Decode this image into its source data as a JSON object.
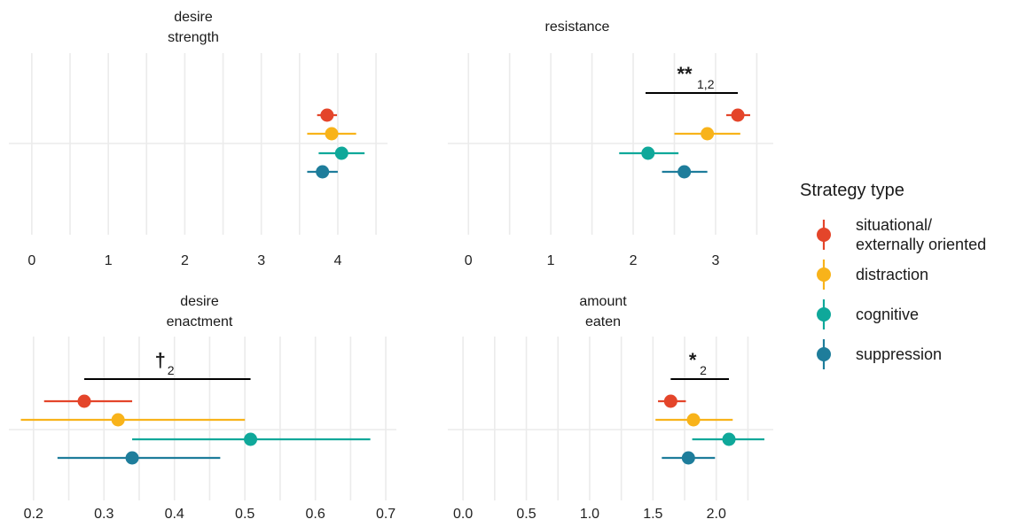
{
  "legend": {
    "title": "Strategy type",
    "items": [
      {
        "label_lines": [
          "situational/",
          "externally oriented"
        ],
        "color": "#E4452A"
      },
      {
        "label_lines": [
          "distraction"
        ],
        "color": "#F8B31A"
      },
      {
        "label_lines": [
          "cognitive"
        ],
        "color": "#0FA89A"
      },
      {
        "label_lines": [
          "suppression"
        ],
        "color": "#1E7D9B"
      }
    ]
  },
  "chart_data": [
    {
      "type": "scatter",
      "title_lines": [
        "desire",
        "strength"
      ],
      "xlim": [
        -0.3,
        4.65
      ],
      "xticks": [
        0,
        1,
        2,
        3,
        4
      ],
      "tick_labels": [
        "0",
        "1",
        "2",
        "3",
        "4"
      ],
      "points": [
        {
          "series": "situational/externally oriented",
          "value": 3.86,
          "lo": 3.73,
          "hi": 3.99
        },
        {
          "series": "distraction",
          "value": 3.92,
          "lo": 3.6,
          "hi": 4.24
        },
        {
          "series": "cognitive",
          "value": 4.05,
          "lo": 3.75,
          "hi": 4.35
        },
        {
          "series": "suppression",
          "value": 3.8,
          "lo": 3.6,
          "hi": 4.0
        }
      ],
      "significance": null,
      "grid": true
    },
    {
      "type": "scatter",
      "title_lines": [
        "resistance"
      ],
      "xlim": [
        -0.25,
        3.7
      ],
      "xticks": [
        0,
        1,
        2,
        3
      ],
      "tick_labels": [
        "0",
        "1",
        "2",
        "3"
      ],
      "points": [
        {
          "series": "situational/externally oriented",
          "value": 3.27,
          "lo": 3.13,
          "hi": 3.42
        },
        {
          "series": "distraction",
          "value": 2.9,
          "lo": 2.5,
          "hi": 3.3
        },
        {
          "series": "cognitive",
          "value": 2.18,
          "lo": 1.83,
          "hi": 2.55
        },
        {
          "series": "suppression",
          "value": 2.62,
          "lo": 2.35,
          "hi": 2.9
        }
      ],
      "significance": {
        "symbol": "**",
        "subscript": "1,2",
        "x_from": 2.15,
        "x_to": 3.27
      },
      "grid": true
    },
    {
      "type": "scatter",
      "title_lines": [
        "desire",
        "enactment"
      ],
      "xlim": [
        0.165,
        0.715
      ],
      "xticks": [
        0.2,
        0.3,
        0.4,
        0.5,
        0.6,
        0.7
      ],
      "tick_labels": [
        "0.2",
        "0.3",
        "0.4",
        "0.5",
        "0.6",
        "0.7"
      ],
      "points": [
        {
          "series": "situational/externally oriented",
          "value": 0.272,
          "lo": 0.215,
          "hi": 0.34
        },
        {
          "series": "distraction",
          "value": 0.32,
          "lo": 0.182,
          "hi": 0.5
        },
        {
          "series": "cognitive",
          "value": 0.508,
          "lo": 0.34,
          "hi": 0.678
        },
        {
          "series": "suppression",
          "value": 0.34,
          "lo": 0.234,
          "hi": 0.465
        }
      ],
      "significance": {
        "symbol": "†",
        "subscript": "2",
        "x_from": 0.272,
        "x_to": 0.508
      },
      "grid": true
    },
    {
      "type": "scatter",
      "title_lines": [
        "amount",
        "eaten"
      ],
      "xlim": [
        -0.12,
        2.45
      ],
      "xticks": [
        0.0,
        0.5,
        1.0,
        1.5,
        2.0
      ],
      "tick_labels": [
        "0.0",
        "0.5",
        "1.0",
        "1.5",
        "2.0"
      ],
      "points": [
        {
          "series": "situational/externally oriented",
          "value": 1.64,
          "lo": 1.54,
          "hi": 1.76
        },
        {
          "series": "distraction",
          "value": 1.82,
          "lo": 1.52,
          "hi": 2.13
        },
        {
          "series": "cognitive",
          "value": 2.1,
          "lo": 1.81,
          "hi": 2.38
        },
        {
          "series": "suppression",
          "value": 1.78,
          "lo": 1.57,
          "hi": 1.99
        }
      ],
      "significance": {
        "symbol": "*",
        "subscript": "2",
        "x_from": 1.64,
        "x_to": 2.1
      },
      "grid": true
    }
  ]
}
